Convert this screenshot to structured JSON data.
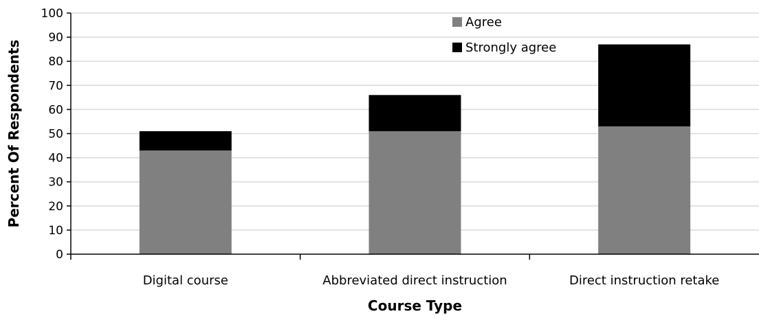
{
  "chart_data": {
    "type": "bar",
    "stacked": true,
    "categories": [
      "Digital course",
      "Abbreviated direct instruction",
      "Direct instruction retake"
    ],
    "series": [
      {
        "name": "Agree",
        "values": [
          43,
          51,
          53
        ],
        "color": "#808080"
      },
      {
        "name": "Strongly agree",
        "values": [
          8,
          15,
          34
        ],
        "color": "#000000"
      }
    ],
    "xlabel": "Course Type",
    "ylabel": "Percent Of Respondents",
    "ylim": [
      0,
      100
    ],
    "yticks": [
      0,
      10,
      20,
      30,
      40,
      50,
      60,
      70,
      80,
      90,
      100
    ],
    "grid": true,
    "legend_position": "top-right"
  }
}
